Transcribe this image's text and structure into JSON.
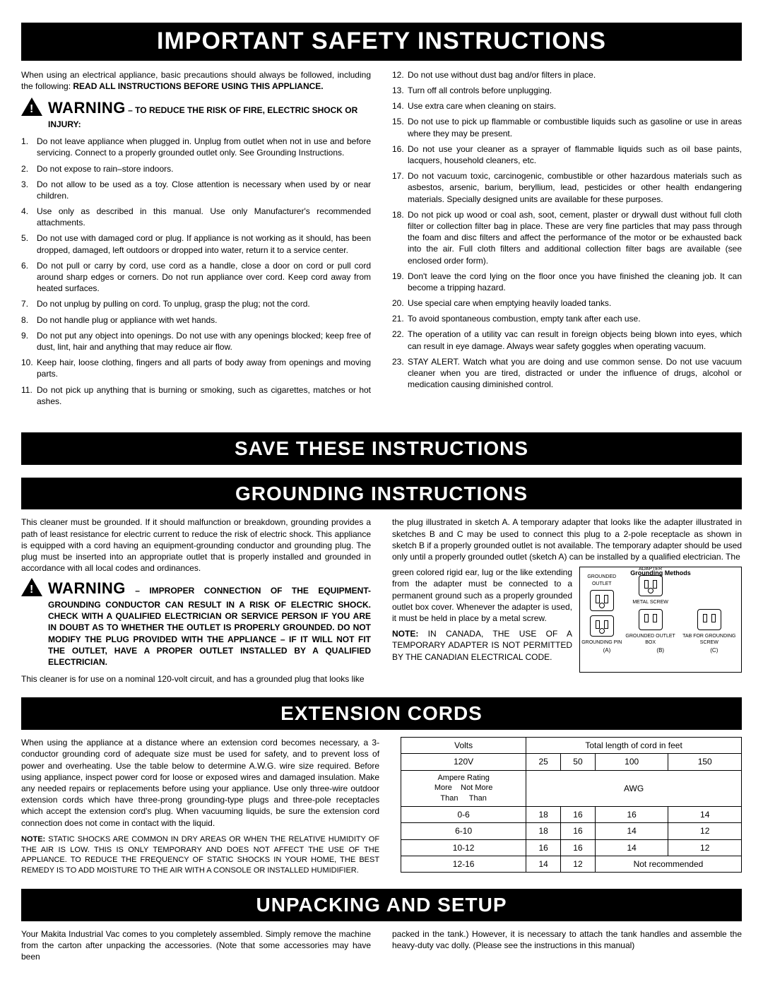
{
  "banners": {
    "safety": "IMPORTANT SAFETY INSTRUCTIONS",
    "save": "SAVE THESE INSTRUCTIONS",
    "grounding": "GROUNDING INSTRUCTIONS",
    "extension": "EXTENSION CORDS",
    "unpacking": "UNPACKING AND SETUP"
  },
  "safety_intro_a": "When using an electrical appliance, basic precautions should always be followed, including the following:  ",
  "safety_intro_b": "READ ALL INSTRUCTIONS BEFORE USING THIS APPLIANCE.",
  "warning_label": "WARNING",
  "warning_tail": " – TO REDUCE THE RISK OF FIRE, ELECTRIC SHOCK OR INJURY:",
  "safety_left": [
    "Do not leave appliance when plugged in. Unplug from outlet when not in use and before servicing. Connect to a properly grounded outlet only. See Grounding Instructions.",
    "Do not expose to rain–store indoors.",
    "Do not allow to be used as a toy. Close attention is necessary when used by or near children.",
    "Use only as described in this manual. Use only Manufacturer's recommended attachments.",
    "Do not use with damaged cord or plug. If appliance is not working as it should, has been dropped, damaged, left outdoors or dropped into water, return it to a service center.",
    "Do not pull or carry by cord, use cord as a handle, close a door on cord or pull cord around sharp edges or corners. Do not run appliance over cord. Keep cord away from heated surfaces.",
    "Do not unplug by pulling on cord. To unplug, grasp the plug; not the cord.",
    "Do not handle plug or appliance with wet hands.",
    "Do not put any object into openings. Do not use with any openings blocked; keep free of dust, lint, hair and anything that may reduce air flow.",
    "Keep hair, loose clothing, fingers and all parts of body away from openings and moving parts.",
    "Do not pick up anything that is burning or smoking, such as cigarettes, matches or hot ashes."
  ],
  "safety_right": [
    "Do not use without dust bag and/or filters in place.",
    "Turn off all controls before unplugging.",
    "Use extra care when cleaning on stairs.",
    "Do not use to pick up flammable or combustible liquids such as gasoline or use in areas where they may be present.",
    "Do not use your cleaner as a sprayer of flammable liquids such as oil base paints, lacquers, household cleaners, etc.",
    "Do not vacuum toxic, carcinogenic, combustible or other hazardous materials such as asbestos, arsenic, barium, beryllium, lead, pesticides or other health endangering materials. Specially designed units are available for these purposes.",
    "Do not pick up wood or coal ash, soot, cement, plaster or drywall dust without full cloth filter or collection filter bag in place. These are very fine particles that may pass through the foam and disc filters and affect the performance of the motor or be exhausted back into the air. Full cloth filters and additional collection filter bags are available (see enclosed order form).",
    "Don't leave the cord lying on the floor once you have finished the cleaning job. It can become a tripping hazard.",
    "Use special care when emptying heavily loaded tanks.",
    "To avoid spontaneous combustion, empty tank after each use.",
    "The operation of a utility vac can result in foreign objects being blown into eyes, which can result in eye damage. Always wear safety goggles when operating vacuum.",
    "STAY ALERT. Watch what you are doing and use common sense. Do not use vacuum cleaner when you are tired, distracted or under the influence of drugs, alcohol or medication causing diminished control."
  ],
  "grounding_para1": "This cleaner must be grounded. If it should malfunction or breakdown, grounding provides a path of least resistance for electric current to reduce the risk of electric shock. This appliance is equipped with a cord having an equipment-grounding conductor and grounding plug. The plug must be inserted into an appropriate outlet that is properly installed and grounded in accordance with all local codes and ordinances.",
  "grounding_warn_tail": " – IMPROPER CONNECTION OF THE EQUIPMENT-GROUNDING CONDUCTOR CAN RESULT IN A RISK OF ELECTRIC SHOCK. CHECK WITH A QUALIFIED ELECTRICIAN OR SERVICE PERSON IF YOU ARE IN DOUBT AS TO WHETHER THE OUTLET IS PROPERLY GROUNDED. DO NOT MODIFY THE PLUG PROVIDED WITH THE APPLIANCE – IF IT WILL NOT FIT THE OUTLET, HAVE A PROPER OUTLET INSTALLED BY A QUALIFIED ELECTRICIAN.",
  "grounding_para2": "This cleaner is for use on a nominal 120-volt circuit, and has a grounded plug that looks like",
  "grounding_para_r1": "the plug illustrated in sketch A. A temporary adapter that looks like the adapter illustrated in sketches B and C may be used to connect this plug to a 2-pole receptacle as shown in sketch B if a properly grounded outlet is not available. The temporary adapter should be used only until a properly grounded outlet (sketch A) can be installed by a qualified electrician. The",
  "grounding_para_r2": "green colored rigid ear, lug or the like extending from the adapter must be connected to a permanent ground such as a properly grounded outlet box cover. Whenever the adapter is used, it must be held in place by a metal screw.",
  "grounding_note_lead": "NOTE:",
  "grounding_note": " IN CANADA, THE USE OF A TEMPORARY ADAPTER IS NOT PERMITTED BY THE CANADIAN ELECTRICAL CODE.",
  "diagram": {
    "title": "Grounding Methods",
    "label_grounded_outlet": "GROUNDED OUTLET",
    "label_adapter": "ADAPTER",
    "label_metal_screw": "METAL SCREW",
    "label_tab": "TAB FOR GROUNDING SCREW",
    "label_pin": "GROUNDING PIN",
    "label_box": "GROUNDED OUTLET BOX",
    "a": "(A)",
    "b": "(B)",
    "c": "(C)"
  },
  "ext_para1": "When using the appliance at a distance where an extension cord becomes necessary, a 3-conductor grounding cord of adequate size must be used for safety, and to prevent loss of power and overheating. Use the table below to determine A.W.G. wire size required. Before using appliance, inspect power cord for loose or exposed wires and damaged insulation. Make any needed repairs or replacements before using your appliance. Use only three-wire outdoor extension cords which have three-prong grounding-type plugs and three-pole receptacles which accept the extension cord's plug. When vacuuming liquids, be sure the extension cord connection does not come in contact with the liquid.",
  "ext_note_lead": "NOTE:",
  "ext_note": " STATIC SHOCKS ARE COMMON IN DRY AREAS OR WHEN THE RELATIVE HUMIDITY OF THE AIR IS LOW. THIS IS ONLY TEMPORARY AND DOES NOT AFFECT THE USE OF THE APPLIANCE. TO REDUCE THE FREQUENCY OF STATIC SHOCKS IN YOUR HOME, THE BEST REMEDY IS TO ADD MOISTURE TO THE AIR WITH A CONSOLE OR INSTALLED HUMIDIFIER.",
  "ext_table": {
    "volts_hdr": "Volts",
    "length_hdr": "Total length of cord in feet",
    "volts_val": "120V",
    "lens": [
      "25",
      "50",
      "100",
      "150"
    ],
    "amp_hdr_line1": "Ampere Rating",
    "amp_hdr_more": "More",
    "amp_hdr_notmore": "Not More",
    "amp_hdr_than": "Than",
    "awg": "AWG",
    "rows": [
      {
        "range": "0-6",
        "vals": [
          "18",
          "16",
          "16",
          "14"
        ]
      },
      {
        "range": "6-10",
        "vals": [
          "18",
          "16",
          "14",
          "12"
        ]
      },
      {
        "range": "10-12",
        "vals": [
          "16",
          "16",
          "14",
          "12"
        ]
      },
      {
        "range": "12-16",
        "vals": [
          "14",
          "12"
        ],
        "notrec": "Not recommended"
      }
    ]
  },
  "unpack_left": "Your Makita Industrial Vac comes to you completely assembled. Simply remove the machine from the carton after unpacking the accessories. (Note that some accessories may have been",
  "unpack_right": "packed in the tank.) However, it is necessary to attach the tank handles and assemble the heavy-duty vac dolly. (Please see the instructions in this manual)"
}
